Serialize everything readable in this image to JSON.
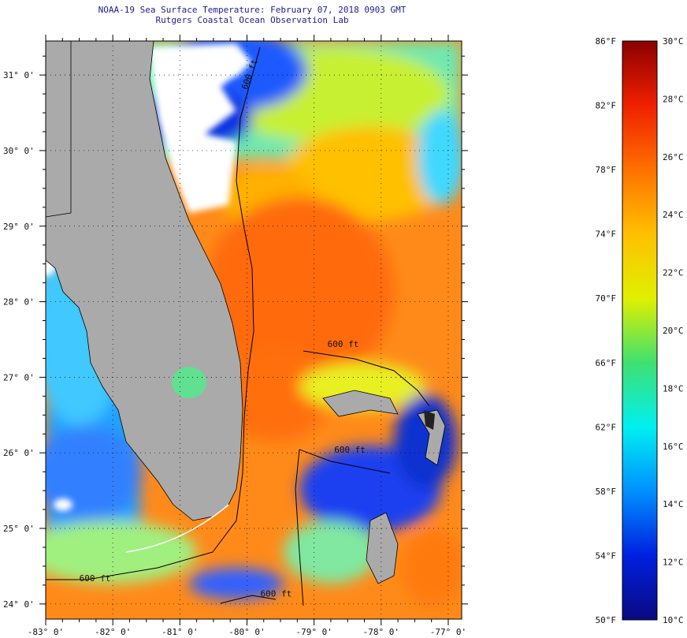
{
  "header": {
    "title": "NOAA-19 Sea Surface Temperature:  February 07, 2018 0903 GMT",
    "subtitle": "Rutgers Coastal Ocean Observation Lab"
  },
  "map": {
    "lon_range": [
      -83,
      -76.8
    ],
    "lat_range": [
      23.8,
      31.45
    ],
    "lat_ticks": [
      {
        "value": 31,
        "label": "31° 0'"
      },
      {
        "value": 30,
        "label": "30° 0'"
      },
      {
        "value": 29,
        "label": "29° 0'"
      },
      {
        "value": 28,
        "label": "28° 0'"
      },
      {
        "value": 27,
        "label": "27° 0'"
      },
      {
        "value": 26,
        "label": "26° 0'"
      },
      {
        "value": 25,
        "label": "25° 0'"
      },
      {
        "value": 24,
        "label": "24° 0'"
      }
    ],
    "lon_ticks": [
      {
        "value": -83,
        "label": "-83° 0'"
      },
      {
        "value": -82,
        "label": "-82° 0'"
      },
      {
        "value": -81,
        "label": "-81° 0'"
      },
      {
        "value": -80,
        "label": "-80° 0'"
      },
      {
        "value": -79,
        "label": "-79° 0'"
      },
      {
        "value": -78,
        "label": "-78° 0'"
      },
      {
        "value": -77,
        "label": "-77° 0'"
      }
    ],
    "contour_labels": [
      {
        "text": "600 ft",
        "lon": -80.0,
        "lat": 30.8,
        "rotate": -70
      },
      {
        "text": "600 ft",
        "lon": -78.8,
        "lat": 27.4,
        "rotate": 0
      },
      {
        "text": "600 ft",
        "lon": -78.7,
        "lat": 26.0,
        "rotate": 0
      },
      {
        "text": "600 ft",
        "lon": -82.5,
        "lat": 24.3,
        "rotate": 0
      },
      {
        "text": "600 ft",
        "lon": -79.8,
        "lat": 24.1,
        "rotate": 0
      }
    ],
    "land_color": "#aaaaaa",
    "cloud_color": "#ffffff"
  },
  "colorbar": {
    "f_labels": [
      "86°F",
      "82°F",
      "78°F",
      "74°F",
      "70°F",
      "66°F",
      "62°F",
      "58°F",
      "54°F",
      "50°F"
    ],
    "c_labels": [
      "30°C",
      "28°C",
      "26°C",
      "24°C",
      "22°C",
      "20°C",
      "18°C",
      "16°C",
      "14°C",
      "12°C",
      "10°C"
    ],
    "range_c": [
      10,
      30
    ],
    "stops": [
      "#0a0a80",
      "#0020e0",
      "#0090ff",
      "#00f0f0",
      "#40e070",
      "#e0f000",
      "#ffc000",
      "#ff7000",
      "#f02000",
      "#8b0000"
    ]
  }
}
